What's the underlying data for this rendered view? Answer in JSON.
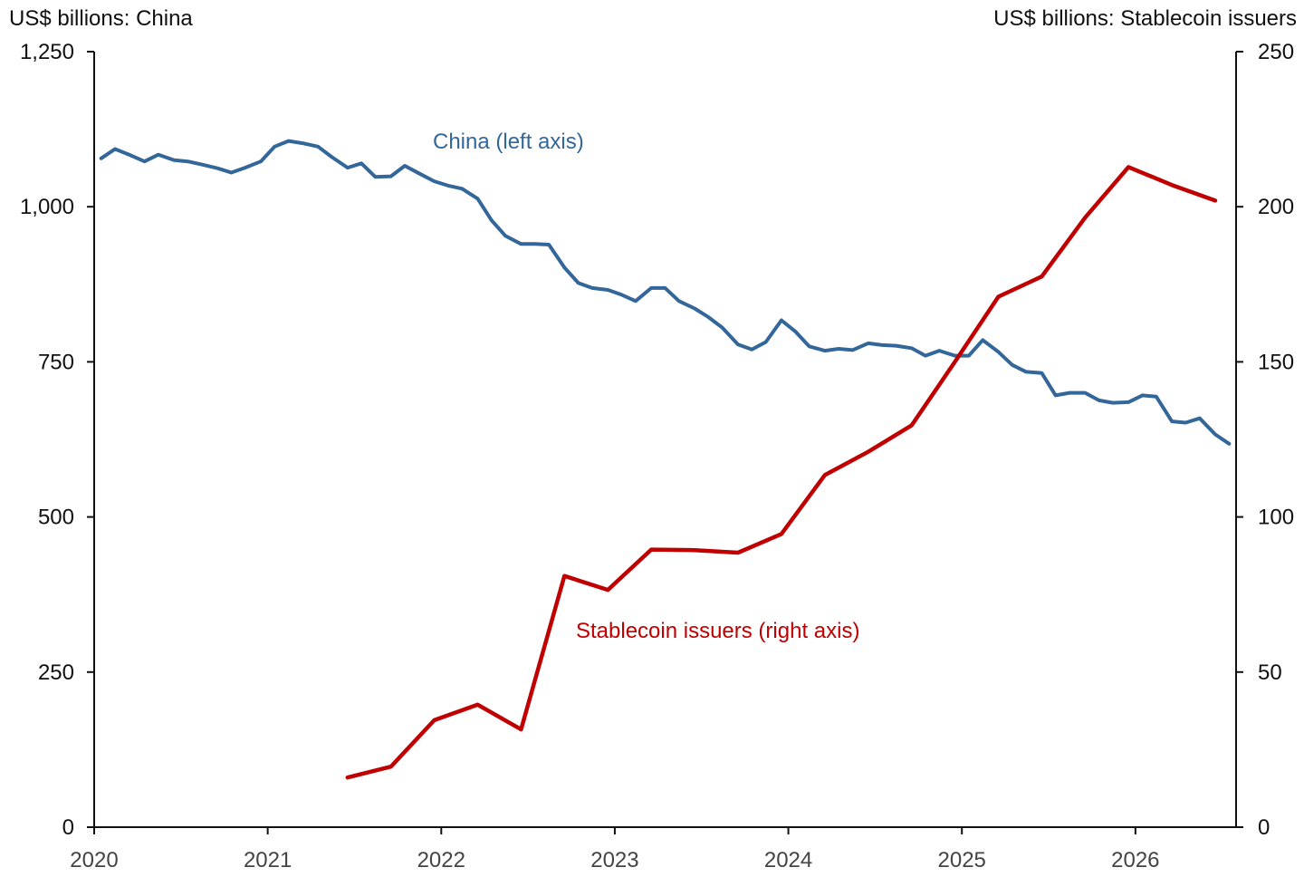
{
  "chart_data": {
    "type": "line",
    "left_axis_title": "US$ billions: China",
    "right_axis_title": "US$ billions: Stablecoin issuers",
    "left_ylim": [
      0,
      1250
    ],
    "right_ylim": [
      0,
      250
    ],
    "left_ticks": [
      {
        "value": 0,
        "label": "0"
      },
      {
        "value": 250,
        "label": "250"
      },
      {
        "value": 500,
        "label": "500"
      },
      {
        "value": 750,
        "label": "750"
      },
      {
        "value": 1000,
        "label": "1,000"
      },
      {
        "value": 1250,
        "label": "1,250"
      }
    ],
    "right_ticks": [
      {
        "value": 0,
        "label": "0"
      },
      {
        "value": 50,
        "label": "50"
      },
      {
        "value": 100,
        "label": "100"
      },
      {
        "value": 150,
        "label": "150"
      },
      {
        "value": 200,
        "label": "200"
      },
      {
        "value": 250,
        "label": "250"
      }
    ],
    "x_ticks": [
      {
        "value": 2020,
        "label": "2020"
      },
      {
        "value": 2021,
        "label": "2021"
      },
      {
        "value": 2022,
        "label": "2022"
      },
      {
        "value": 2023,
        "label": "2023"
      },
      {
        "value": 2024,
        "label": "2024"
      },
      {
        "value": 2025,
        "label": "2025"
      },
      {
        "value": 2026,
        "label": "2026"
      }
    ],
    "xlim": [
      2020,
      2026.58
    ],
    "grid": false,
    "series": [
      {
        "name": "China (left axis)",
        "axis": "left",
        "color": "#336699",
        "points": [
          [
            2020.04,
            1078
          ],
          [
            2020.12,
            1093
          ],
          [
            2020.21,
            1083
          ],
          [
            2020.29,
            1073
          ],
          [
            2020.37,
            1084
          ],
          [
            2020.46,
            1075
          ],
          [
            2020.54,
            1073
          ],
          [
            2020.62,
            1068
          ],
          [
            2020.71,
            1062
          ],
          [
            2020.79,
            1055
          ],
          [
            2020.87,
            1063
          ],
          [
            2020.96,
            1073
          ],
          [
            2021.04,
            1097
          ],
          [
            2021.12,
            1106
          ],
          [
            2021.21,
            1102
          ],
          [
            2021.29,
            1097
          ],
          [
            2021.37,
            1080
          ],
          [
            2021.46,
            1063
          ],
          [
            2021.54,
            1070
          ],
          [
            2021.62,
            1048
          ],
          [
            2021.71,
            1049
          ],
          [
            2021.79,
            1066
          ],
          [
            2021.87,
            1054
          ],
          [
            2021.96,
            1041
          ],
          [
            2022.04,
            1034
          ],
          [
            2022.12,
            1029
          ],
          [
            2022.21,
            1013
          ],
          [
            2022.29,
            978
          ],
          [
            2022.37,
            953
          ],
          [
            2022.46,
            940
          ],
          [
            2022.54,
            940
          ],
          [
            2022.62,
            939
          ],
          [
            2022.71,
            902
          ],
          [
            2022.79,
            877
          ],
          [
            2022.87,
            869
          ],
          [
            2022.96,
            866
          ],
          [
            2023.04,
            858
          ],
          [
            2023.12,
            848
          ],
          [
            2023.21,
            869
          ],
          [
            2023.29,
            869
          ],
          [
            2023.37,
            848
          ],
          [
            2023.46,
            836
          ],
          [
            2023.54,
            822
          ],
          [
            2023.62,
            805
          ],
          [
            2023.71,
            778
          ],
          [
            2023.79,
            770
          ],
          [
            2023.87,
            782
          ],
          [
            2023.96,
            817
          ],
          [
            2024.04,
            799
          ],
          [
            2024.12,
            775
          ],
          [
            2024.21,
            768
          ],
          [
            2024.29,
            771
          ],
          [
            2024.37,
            769
          ],
          [
            2024.46,
            780
          ],
          [
            2024.54,
            777
          ],
          [
            2024.62,
            776
          ],
          [
            2024.71,
            772
          ],
          [
            2024.79,
            760
          ],
          [
            2024.87,
            768
          ],
          [
            2024.96,
            760
          ],
          [
            2025.04,
            760
          ],
          [
            2025.12,
            785
          ],
          [
            2025.21,
            766
          ],
          [
            2025.29,
            745
          ],
          [
            2025.37,
            734
          ],
          [
            2025.46,
            732
          ],
          [
            2025.54,
            696
          ],
          [
            2025.62,
            700
          ],
          [
            2025.71,
            700
          ],
          [
            2025.79,
            688
          ],
          [
            2025.87,
            684
          ],
          [
            2025.96,
            685
          ],
          [
            2026.04,
            696
          ],
          [
            2026.12,
            694
          ],
          [
            2026.21,
            654
          ],
          [
            2026.29,
            652
          ],
          [
            2026.37,
            659
          ],
          [
            2026.46,
            633
          ],
          [
            2026.54,
            618
          ]
        ]
      },
      {
        "name": "Stablecoin issuers (right axis)",
        "axis": "right",
        "color": "#c00000",
        "points": [
          [
            2021.46,
            16
          ],
          [
            2021.71,
            19.5
          ],
          [
            2021.96,
            34.5
          ],
          [
            2022.21,
            39.5
          ],
          [
            2022.46,
            31.5
          ],
          [
            2022.71,
            81
          ],
          [
            2022.96,
            76.5
          ],
          [
            2023.21,
            89.5
          ],
          [
            2023.46,
            89.3
          ],
          [
            2023.71,
            88.5
          ],
          [
            2023.96,
            94.5
          ],
          [
            2024.21,
            113.5
          ],
          [
            2024.46,
            121
          ],
          [
            2024.71,
            129.5
          ],
          [
            2024.96,
            150
          ],
          [
            2025.21,
            171
          ],
          [
            2025.46,
            177.5
          ],
          [
            2025.71,
            196.5
          ],
          [
            2025.96,
            212.8
          ],
          [
            2026.21,
            207
          ],
          [
            2026.46,
            202
          ]
        ]
      }
    ]
  }
}
